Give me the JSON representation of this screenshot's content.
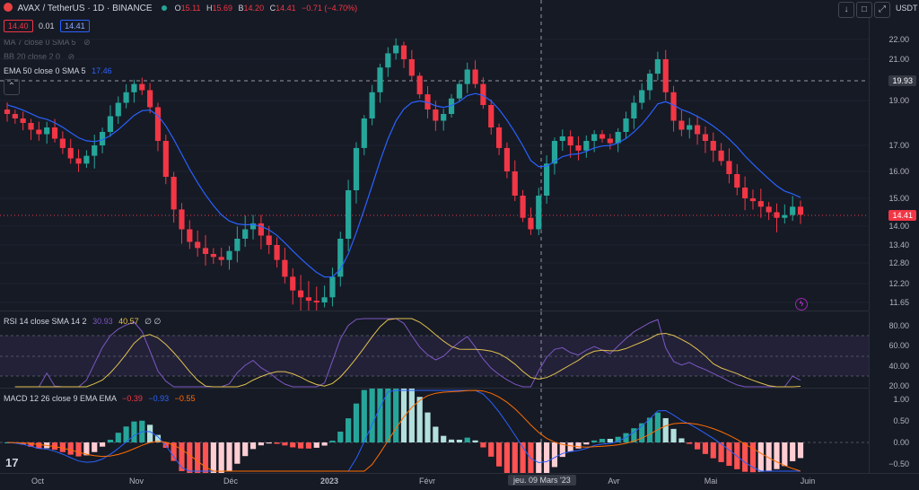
{
  "header": {
    "symbol": "AVAX / TetherUS · 1D · BINANCE",
    "o_label": "O",
    "o": "15.11",
    "h_label": "H",
    "h": "15.69",
    "l_label": "B",
    "l": "14.20",
    "c_label": "C",
    "c": "14.41",
    "change": "−0.71 (−4.70%)",
    "bid": "14.40",
    "spread": "0.01",
    "ask": "14.41",
    "currency": "USDT"
  },
  "indicators": {
    "ma": "MA 7 close 0 SMA 5",
    "bb": "BB 20 close 2 0",
    "ema_label": "EMA 50 close 0 SMA 5",
    "ema_value": "17.46",
    "rsi_label": "RSI 14 close SMA 14 2",
    "rsi_value": "30.93",
    "rsi_sma": "40.57",
    "rsi_extra": "∅ ∅",
    "macd_label": "MACD 12 26 close 9 EMA EMA",
    "macd_hist": "−0.39",
    "macd_line": "−0.93",
    "macd_signal": "−0.55"
  },
  "price_axis": {
    "ticks": [
      "22.00",
      "21.00",
      "19.00",
      "17.00",
      "16.00",
      "15.00",
      "14.00",
      "13.40",
      "12.80",
      "12.20",
      "11.65"
    ],
    "crosshair_value": "19.93",
    "last_price": "14.41"
  },
  "rsi_axis": {
    "ticks": [
      "80.00",
      "60.00",
      "40.00",
      "20.00"
    ]
  },
  "macd_axis": {
    "ticks": [
      "1.00",
      "0.50",
      "0.00",
      "−0.50"
    ]
  },
  "time_axis": {
    "labels": [
      "Oct",
      "Nov",
      "Déc",
      "2023",
      "Févr",
      "Avr",
      "Mai",
      "Juin"
    ],
    "crosshair_date": "jeu. 09 Mars '23"
  },
  "colors": {
    "up": "#26a69a",
    "down": "#f23645",
    "ema": "#2962ff",
    "rsi": "#7e57c2",
    "rsi_sma": "#e0c050",
    "bg": "#161a25"
  },
  "chart_data": {
    "type": "candlestick",
    "ema_period": 50,
    "close": [
      18.4,
      18.2,
      18.0,
      17.7,
      17.5,
      17.8,
      17.3,
      16.9,
      16.5,
      16.3,
      16.6,
      17.0,
      17.6,
      18.3,
      18.9,
      19.4,
      19.8,
      19.5,
      18.7,
      17.2,
      15.8,
      14.6,
      13.9,
      13.5,
      13.3,
      13.1,
      13.0,
      12.9,
      13.2,
      13.6,
      13.9,
      14.1,
      13.7,
      13.4,
      12.9,
      12.4,
      12.0,
      11.8,
      11.7,
      11.65,
      11.8,
      12.4,
      13.6,
      15.3,
      16.9,
      18.2,
      19.4,
      20.6,
      21.3,
      21.7,
      21.0,
      20.2,
      19.3,
      18.6,
      18.1,
      18.4,
      19.1,
      19.8,
      20.5,
      19.8,
      18.8,
      17.8,
      16.9,
      16.0,
      15.1,
      14.3,
      13.9,
      15.1,
      16.3,
      17.2,
      17.4,
      17.0,
      16.8,
      17.2,
      17.5,
      17.3,
      17.1,
      17.6,
      18.2,
      18.9,
      19.5,
      20.3,
      21.0,
      19.4,
      18.1,
      17.7,
      17.9,
      17.5,
      17.2,
      16.8,
      16.4,
      15.9,
      15.4,
      15.0,
      14.9,
      14.7,
      14.5,
      14.3,
      14.4,
      14.7,
      14.41
    ]
  }
}
